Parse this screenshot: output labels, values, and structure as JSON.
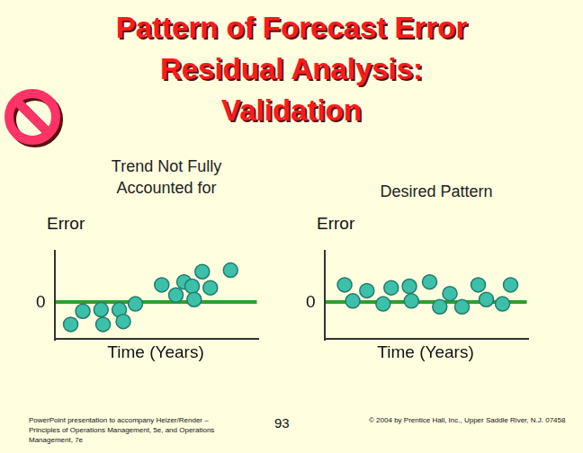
{
  "slide": {
    "title_lines": [
      "Pattern of Forecast Error",
      "Residual Analysis:",
      "Validation"
    ],
    "footer_left": "PowerPoint presentation to accompany Heizer/Render – Principles of Operations Management, 5e, and Operations Management, 7e",
    "page_number": "93",
    "footer_right": "© 2004 by Prentice Hall, Inc., Upper Saddle River, N.J. 07458"
  },
  "chart_data": [
    {
      "type": "scatter",
      "title": "Trend Not Fully Accounted for",
      "x_label": "Time (Years)",
      "y_label": "Error",
      "x": [
        0.8,
        1.4,
        2.3,
        2.4,
        3.2,
        3.4,
        4.0,
        5.3,
        6.0,
        6.4,
        6.8,
        6.9,
        7.3,
        7.7,
        8.7
      ],
      "values": [
        -1.5,
        -0.6,
        -0.5,
        -1.5,
        -0.5,
        -1.3,
        -0.1,
        1.2,
        0.5,
        1.4,
        1.1,
        0.2,
        2.1,
        1.0,
        2.2
      ],
      "color": "#3cc0aa",
      "marker": "circle",
      "xlim": [
        0,
        10
      ],
      "ylim": [
        -2.5,
        3.5
      ],
      "xticks": [],
      "yticks": [
        0
      ],
      "grid": true,
      "tick_labels": "y"
    },
    {
      "type": "scatter",
      "title": "Desired Pattern",
      "x_label": "Time (Years)",
      "y_label": "Error",
      "x": [
        1.0,
        1.4,
        2.1,
        2.9,
        3.3,
        4.2,
        4.3,
        5.2,
        5.7,
        6.2,
        6.8,
        7.6,
        8.0,
        8.8,
        9.2
      ],
      "values": [
        1.2,
        0.1,
        0.8,
        -0.1,
        1.0,
        1.1,
        0.1,
        1.4,
        -0.3,
        0.6,
        -0.3,
        1.2,
        0.2,
        -0.1,
        1.2
      ],
      "color": "#3cc0aa",
      "marker": "circle",
      "xlim": [
        0,
        10
      ],
      "ylim": [
        -2.5,
        3.5
      ],
      "xticks": [],
      "yticks": [
        0
      ],
      "grid": true,
      "tick_labels": "y"
    }
  ]
}
